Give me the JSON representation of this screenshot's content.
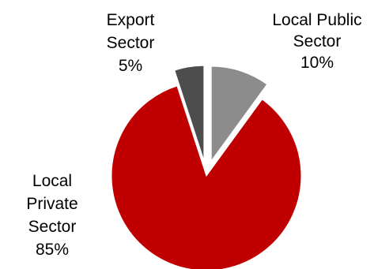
{
  "chart_data": {
    "type": "pie",
    "title": "",
    "slices": [
      {
        "label_lines": [
          "Local Public",
          "Sector",
          "10%"
        ],
        "value": 10,
        "color": "#8c8c8c",
        "exploded": true
      },
      {
        "label_lines": [
          "Local",
          "Private",
          "Sector",
          "85%"
        ],
        "value": 85,
        "color": "#c00000",
        "exploded": false
      },
      {
        "label_lines": [
          "Export",
          "Sector",
          "5%"
        ],
        "value": 5,
        "color": "#4d4d4d",
        "exploded": true
      }
    ],
    "start_angle_deg": 0,
    "direction": "clockwise",
    "legend": "none"
  }
}
